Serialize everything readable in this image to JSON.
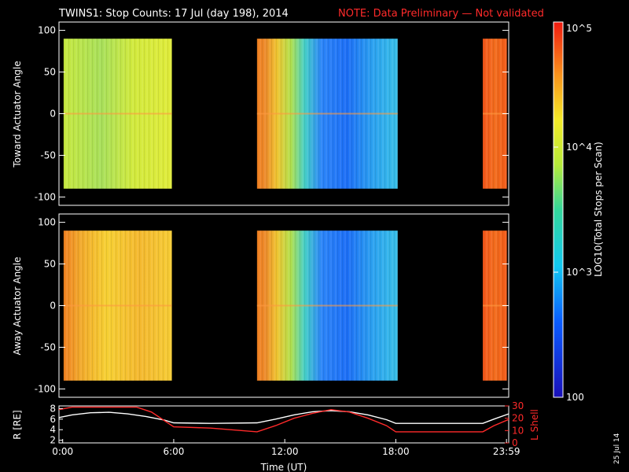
{
  "header": {
    "title": "TWINS1: Stop Counts: 17 Jul (day 198), 2014",
    "note": "NOTE: Data Preliminary — Not validated"
  },
  "colorbar": {
    "label": "LOG10(Total Stops per Scan)",
    "ticks": [
      "10^5",
      "10^4",
      "10^3",
      "100"
    ],
    "values": [
      100000,
      10000,
      1000,
      100
    ],
    "range": [
      100,
      100000
    ],
    "scale": "log"
  },
  "stamp": "25 Jul 14",
  "chart_data": [
    {
      "type": "heatmap",
      "ylabel": "Toward Actuator Angle",
      "yticks": [
        100,
        50,
        0,
        -50,
        -100
      ],
      "ylim": [
        -110,
        110
      ],
      "xlim": [
        -0.2,
        24.1
      ],
      "x_gaps_no_data": [
        [
          5.9,
          10.5
        ],
        [
          18.1,
          22.7
        ]
      ],
      "segments": [
        {
          "x_start": 0.05,
          "x_end": 5.9,
          "angle_range": [
            -90,
            90
          ],
          "level": "mid-high (~10^4, green-yellow)"
        },
        {
          "x_start": 10.5,
          "x_end": 18.1,
          "angle_range": [
            -90,
            90
          ],
          "level": "decreasing from ~5x10^4 (orange) to ~10^3 (blue)"
        },
        {
          "x_start": 22.7,
          "x_end": 24.0,
          "angle_range": [
            -90,
            90
          ],
          "level": "high (~5x10^4, orange-red)"
        }
      ]
    },
    {
      "type": "heatmap",
      "ylabel": "Away Actuator Angle",
      "yticks": [
        100,
        50,
        0,
        -50,
        -100
      ],
      "ylim": [
        -110,
        110
      ],
      "xlim": [
        -0.2,
        24.1
      ],
      "x_gaps_no_data": [
        [
          5.9,
          10.5
        ],
        [
          18.1,
          22.7
        ]
      ],
      "segments": [
        {
          "x_start": 0.05,
          "x_end": 5.9,
          "angle_range": [
            -90,
            90
          ],
          "level": "high (~2x10^4, orange-yellow)"
        },
        {
          "x_start": 10.5,
          "x_end": 18.1,
          "angle_range": [
            -90,
            90
          ],
          "level": "decreasing from ~5x10^4 (orange) to ~10^3 (blue)"
        },
        {
          "x_start": 22.7,
          "x_end": 24.0,
          "angle_range": [
            -90,
            90
          ],
          "level": "high (~5x10^4, orange-red)"
        }
      ]
    },
    {
      "type": "line",
      "xlabel": "Time (UT)",
      "xticks": [
        "0:00",
        "6:00",
        "12:00",
        "18:00",
        "23:59"
      ],
      "xtick_values": [
        0,
        6,
        12,
        18,
        23.98
      ],
      "xlim": [
        -0.2,
        24.1
      ],
      "ylabel": "R [RE]",
      "yticks": [
        2,
        4,
        6,
        8
      ],
      "ylim": [
        1.5,
        8.5
      ],
      "y2label": "L Shell",
      "y2ticks": [
        0,
        10,
        20,
        30
      ],
      "y2lim": [
        0,
        30
      ],
      "series": [
        {
          "axis": "left",
          "color": "#ffffff",
          "x": [
            -0.2,
            0.5,
            1.5,
            2.5,
            3.5,
            4.5,
            5.5,
            6.0,
            8.0,
            10.5,
            11.5,
            12.5,
            13.5,
            14.5,
            15.5,
            16.5,
            17.5,
            18.0,
            21.0,
            22.7,
            23.3,
            24.1
          ],
          "y": [
            6.3,
            6.8,
            7.2,
            7.3,
            7.0,
            6.5,
            5.8,
            5.3,
            5.2,
            5.3,
            6.0,
            6.8,
            7.4,
            7.6,
            7.4,
            6.8,
            5.9,
            5.2,
            5.2,
            5.2,
            6.0,
            7.0
          ]
        },
        {
          "axis": "right",
          "color": "#ff2a2a",
          "x": [
            -0.2,
            0.5,
            4.0,
            4.8,
            5.5,
            6.0,
            8.0,
            10.5,
            11.5,
            12.5,
            13.5,
            14.5,
            15.5,
            16.5,
            17.5,
            18.0,
            21.0,
            22.7,
            23.3,
            24.1
          ],
          "y": [
            27,
            29,
            29,
            25,
            18,
            13,
            12,
            9,
            14,
            20,
            24,
            27,
            25,
            20,
            14,
            9,
            9,
            9,
            14,
            19
          ]
        }
      ]
    }
  ]
}
